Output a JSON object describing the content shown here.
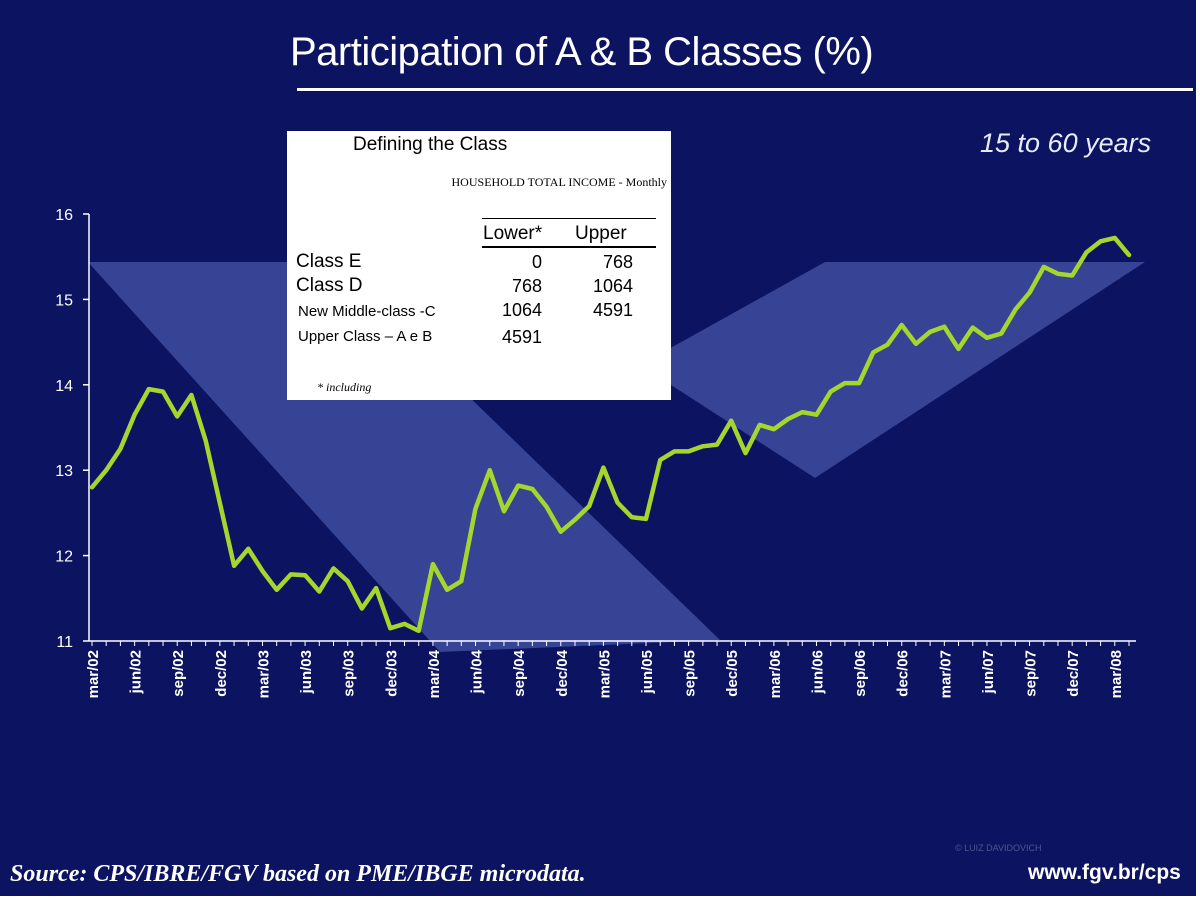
{
  "slide": {
    "title": "Participation of A & B Classes (%)",
    "age_range": "15 to 60 years",
    "source": "Source: CPS/IBRE/FGV based on PME/IBGE microdata.",
    "website": "www.fgv.br/cps",
    "watermark": "© LUIZ DAVIDOVICH"
  },
  "definition_table": {
    "title": "Defining the Class",
    "subtitle": "HOUSEHOLD TOTAL INCOME - Monthly",
    "columns": [
      "Lower*",
      "Upper"
    ],
    "rows": [
      {
        "label": "Class E",
        "lower": "0",
        "upper": "768"
      },
      {
        "label": "Class D",
        "lower": "768",
        "upper": "1064"
      },
      {
        "label": "New Middle-class -C",
        "lower": "1064",
        "upper": "4591"
      },
      {
        "label": "Upper Class – A e B",
        "lower": "4591",
        "upper": ""
      }
    ],
    "footnote": "* including"
  },
  "chart_data": {
    "type": "line",
    "title": "Participation of A & B Classes (%)",
    "xlabel": "",
    "ylabel": "",
    "ylim": [
      11,
      16
    ],
    "yticks": [
      11,
      12,
      13,
      14,
      15,
      16
    ],
    "grid": false,
    "x_tick_labels": [
      "mar/02",
      "jun/02",
      "sep/02",
      "dec/02",
      "mar/03",
      "jun/03",
      "sep/03",
      "dec/03",
      "mar/04",
      "jun/04",
      "sep/04",
      "dec/04",
      "mar/05",
      "jun/05",
      "sep/05",
      "dec/05",
      "mar/06",
      "jun/06",
      "sep/06",
      "dec/06",
      "mar/07",
      "jun/07",
      "sep/07",
      "dec/07",
      "mar/08"
    ],
    "colors": {
      "line": "#a5d62d",
      "background": "#0c1360",
      "axis": "#ffffff",
      "band": "#5b6bc0"
    },
    "series": [
      {
        "values": [
          12.8,
          13.0,
          13.25,
          13.65,
          13.95,
          13.92,
          13.63,
          13.88,
          13.35,
          12.62,
          11.88,
          12.08,
          11.82,
          11.6,
          11.78,
          11.77,
          11.58,
          11.85,
          11.7,
          11.38,
          11.62,
          11.15,
          11.2,
          11.12,
          11.9,
          11.6,
          11.7,
          12.55,
          13.0,
          12.52,
          12.82,
          12.78,
          12.57,
          12.28,
          12.42,
          12.58,
          13.03,
          12.62,
          12.45,
          12.43,
          13.12,
          13.22,
          13.22,
          13.28,
          13.3,
          13.58,
          13.2,
          13.53,
          13.48,
          13.6,
          13.68,
          13.65,
          13.92,
          14.02,
          14.02,
          14.38,
          14.47,
          14.7,
          14.48,
          14.62,
          14.68,
          14.42,
          14.67,
          14.55,
          14.6,
          14.88,
          15.08,
          15.38,
          15.3,
          15.28,
          15.55,
          15.68,
          15.72,
          15.52
        ]
      }
    ]
  }
}
